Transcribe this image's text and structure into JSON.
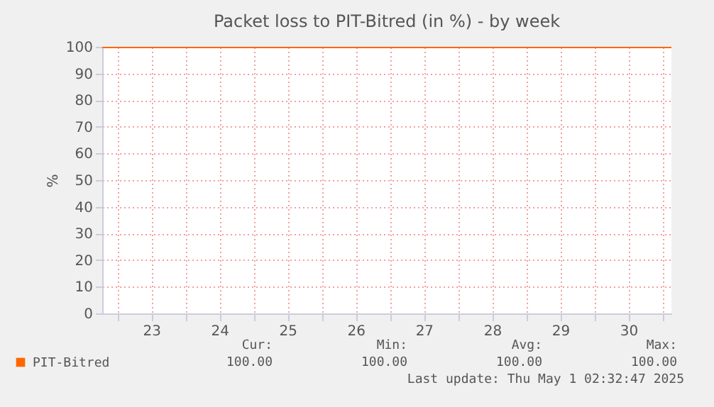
{
  "chart_data": {
    "type": "line",
    "title": "Packet loss to PIT-Bitred (in %) - by week",
    "ylabel": "%",
    "x": [
      22.78,
      31.13
    ],
    "series": [
      {
        "name": "PIT-Bitred",
        "color": "#ff6600",
        "values": [
          100,
          100
        ]
      }
    ],
    "xlim": [
      22.78,
      31.13
    ],
    "xticks": [
      {
        "value": 23,
        "label": null
      },
      {
        "value": 23.5,
        "label": "23"
      },
      {
        "value": 24,
        "label": null
      },
      {
        "value": 24.5,
        "label": "24"
      },
      {
        "value": 25,
        "label": null
      },
      {
        "value": 25.5,
        "label": "25"
      },
      {
        "value": 26,
        "label": null
      },
      {
        "value": 26.5,
        "label": "26"
      },
      {
        "value": 27,
        "label": null
      },
      {
        "value": 27.5,
        "label": "27"
      },
      {
        "value": 28,
        "label": null
      },
      {
        "value": 28.5,
        "label": "28"
      },
      {
        "value": 29,
        "label": null
      },
      {
        "value": 29.5,
        "label": "29"
      },
      {
        "value": 30,
        "label": null
      },
      {
        "value": 30.5,
        "label": "30"
      },
      {
        "value": 31,
        "label": null
      }
    ],
    "ylim": [
      0,
      100
    ],
    "yticks": [
      0,
      10,
      20,
      30,
      40,
      50,
      60,
      70,
      80,
      90,
      100
    ],
    "grid": true,
    "legend": "bottom left",
    "marker": "none",
    "line_style": "solid",
    "annotations": [
      "Cur:",
      "Min:",
      "Avg:",
      "Max:",
      "100.00",
      "100.00",
      "100.00",
      "100.00",
      "Last update: Thu May  1 02:32:47 2025"
    ]
  }
}
